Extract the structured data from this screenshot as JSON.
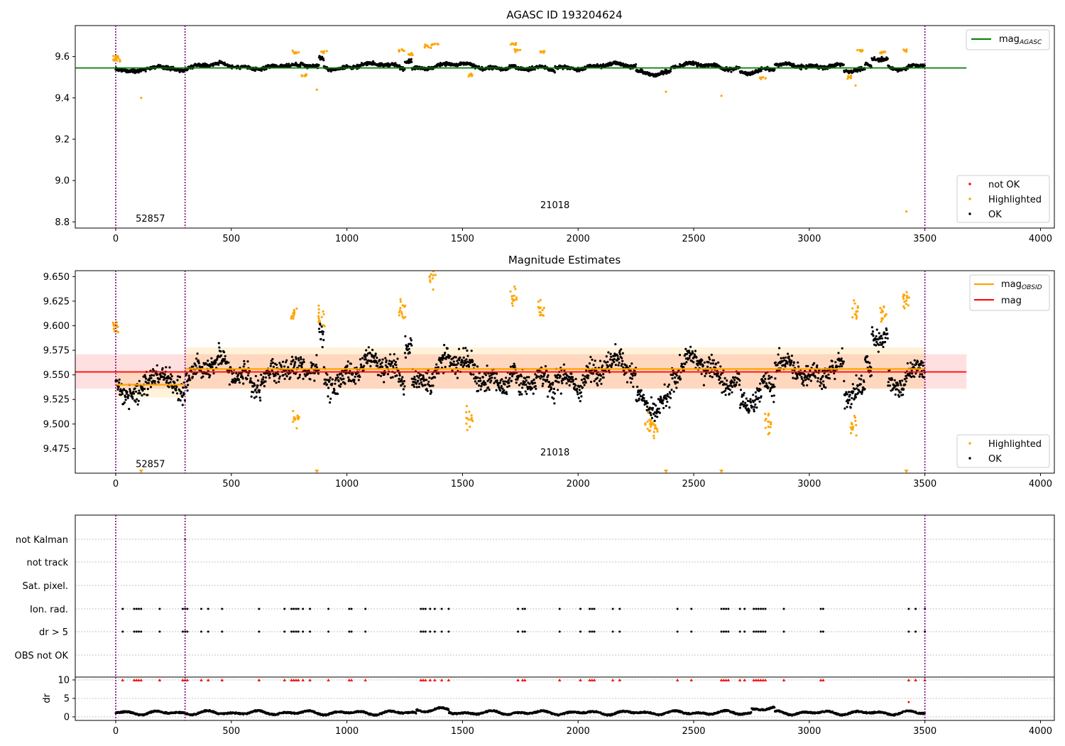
{
  "figure": {
    "title_top": "AGASC ID 193204624",
    "title_mid": "Magnitude Estimates",
    "colors": {
      "ok": "#000000",
      "highlighted": "#ffa500",
      "not_ok": "#ff0000",
      "mag_agasc": "#008000",
      "mag": "#ff0000",
      "mag_obsid": "#ffa500",
      "obs_boundary": "#800080",
      "grid": "#b0b0b0"
    }
  },
  "chart_data": [
    {
      "type": "scatter",
      "title": "AGASC ID 193204624",
      "xlim": [
        -175,
        4060
      ],
      "ylim": [
        8.77,
        9.75
      ],
      "xticks": [
        "0",
        "500",
        "1000",
        "1500",
        "2000",
        "2500",
        "3000",
        "3500",
        "4000"
      ],
      "yticks": [
        "8.8",
        "9.0",
        "9.2",
        "9.4",
        "9.6"
      ],
      "mag_agasc": 9.545,
      "obs_boundaries": [
        0,
        300,
        3500
      ],
      "obsids": [
        {
          "label": "52857",
          "x": 150,
          "y": 8.815
        },
        {
          "label": "21018",
          "x": 1900,
          "y": 8.88
        }
      ],
      "legend_lines": [
        {
          "name": "mag",
          "sub": "AGASC"
        }
      ],
      "legend_markers": [
        "not OK",
        "Highlighted",
        "OK"
      ],
      "highlighted_points": [
        [
          0,
          9.6
        ],
        [
          5,
          9.58
        ],
        [
          110,
          9.4
        ],
        [
          780,
          9.62
        ],
        [
          820,
          9.51
        ],
        [
          870,
          9.44
        ],
        [
          900,
          9.62
        ],
        [
          1240,
          9.63
        ],
        [
          1270,
          9.61
        ],
        [
          1350,
          9.65
        ],
        [
          1380,
          9.66
        ],
        [
          1530,
          9.51
        ],
        [
          1720,
          9.66
        ],
        [
          1740,
          9.63
        ],
        [
          1840,
          9.62
        ],
        [
          2380,
          9.43
        ],
        [
          2620,
          9.41
        ],
        [
          2800,
          9.5
        ],
        [
          3180,
          9.5
        ],
        [
          3200,
          9.46
        ],
        [
          3220,
          9.63
        ],
        [
          3320,
          9.62
        ],
        [
          3420,
          9.63
        ],
        [
          3420,
          8.85
        ]
      ]
    },
    {
      "type": "scatter",
      "title": "Magnitude Estimates",
      "xlim": [
        -175,
        4060
      ],
      "ylim": [
        9.45,
        9.656
      ],
      "xticks": [
        "0",
        "500",
        "1000",
        "1500",
        "2000",
        "2500",
        "3000",
        "3500",
        "4000"
      ],
      "yticks": [
        "9.475",
        "9.500",
        "9.525",
        "9.550",
        "9.575",
        "9.600",
        "9.625",
        "9.650"
      ],
      "mag": 9.553,
      "mag_band": [
        9.536,
        9.571
      ],
      "mag_obsid": [
        {
          "x0": 0,
          "x1": 300,
          "y": 9.54
        },
        {
          "x0": 300,
          "x1": 3500,
          "y": 9.556
        }
      ],
      "obsids": [
        {
          "label": "52857",
          "x": 150,
          "y": 9.459
        },
        {
          "label": "21018",
          "x": 1900,
          "y": 9.471
        }
      ],
      "legend_lines": [
        {
          "name": "mag",
          "sub": "OBSID"
        },
        {
          "name": "mag",
          "sub": ""
        }
      ],
      "legend_markers": [
        "Highlighted",
        "OK"
      ]
    },
    {
      "type": "scatter",
      "categories": [
        "not Kalman",
        "not track",
        "Sat. pixel.",
        "Ion. rad.",
        "dr > 5",
        "OBS not OK"
      ],
      "flag_x": [
        30,
        80,
        90,
        100,
        110,
        190,
        290,
        300,
        310,
        370,
        400,
        460,
        620,
        730,
        760,
        770,
        780,
        790,
        810,
        840,
        920,
        1010,
        1020,
        1080,
        1320,
        1330,
        1340,
        1360,
        1380,
        1410,
        1440,
        1740,
        1760,
        1770,
        1920,
        2010,
        2050,
        2060,
        2070,
        2150,
        2180,
        2430,
        2490,
        2620,
        2630,
        2640,
        2650,
        2700,
        2720,
        2760,
        2770,
        2780,
        2790,
        2800,
        2810,
        2890,
        3050,
        3060,
        3430,
        3460,
        3500
      ],
      "dr_ylim": [
        0,
        10
      ],
      "dr_yticks": [
        "0",
        "5",
        "10"
      ],
      "dr_ylabel": "dr"
    }
  ]
}
